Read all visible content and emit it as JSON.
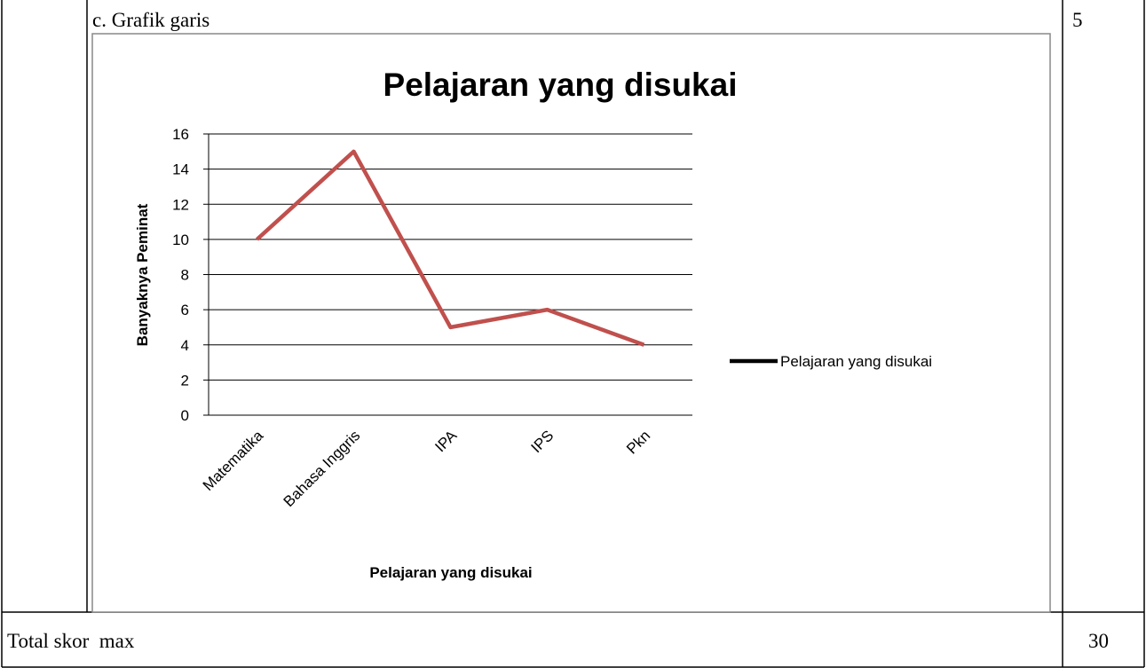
{
  "rows": [
    {
      "label": "c. Grafik garis",
      "score": "5",
      "chart_data": {
        "type": "line",
        "title": "Pelajaran yang disukai",
        "x_label": "Pelajaran yang disukai",
        "y_label": "Banyaknya Peminat",
        "categories": [
          "Matematika",
          "Bahasa Inggris",
          "IPA",
          "IPS",
          "Pkn"
        ],
        "series": [
          {
            "name": "Pelajaran yang disukai",
            "color": "#c0504d",
            "values": [
              10,
              15,
              5,
              6,
              4
            ]
          }
        ],
        "ylim": [
          0,
          16
        ],
        "yticks": [
          0,
          2,
          4,
          6,
          8,
          10,
          12,
          14,
          16
        ],
        "grid": true,
        "legend": "right"
      }
    }
  ],
  "footer": {
    "label": "Total skor  max",
    "score": "30"
  }
}
